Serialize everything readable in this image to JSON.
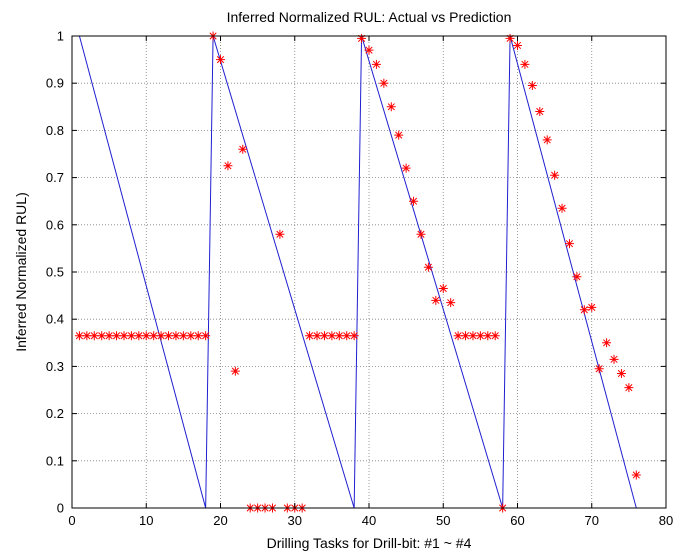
{
  "chart_data": {
    "type": "line",
    "title": "Inferred Normalized RUL: Actual vs Prediction",
    "xlabel": "Drilling Tasks for Drill-bit: #1 ~ #4",
    "ylabel": "Inferred Normalized RUL)",
    "xlim": [
      0,
      80
    ],
    "ylim": [
      0,
      1
    ],
    "xticks": [
      "0",
      "10",
      "20",
      "30",
      "40",
      "50",
      "60",
      "70",
      "80"
    ],
    "yticks": [
      "0",
      "0.1",
      "0.2",
      "0.3",
      "0.4",
      "0.5",
      "0.6",
      "0.7",
      "0.8",
      "0.9",
      "1"
    ],
    "grid": true,
    "legend": "none",
    "colors": {
      "actual": "#1f1fd0",
      "prediction": "#ff0000"
    },
    "series": [
      {
        "style": "line",
        "x": [
          1,
          18,
          19,
          38,
          39,
          58,
          59,
          76
        ],
        "y": [
          1,
          0,
          1,
          0,
          1,
          0,
          1,
          0
        ]
      },
      {
        "style": "marker-star",
        "x": [
          1,
          2,
          3,
          4,
          5,
          6,
          7,
          8,
          9,
          10,
          11,
          12,
          13,
          14,
          15,
          16,
          17,
          18,
          19,
          20,
          21,
          22,
          23,
          24,
          25,
          26,
          27,
          28,
          29,
          30,
          31,
          32,
          33,
          34,
          35,
          36,
          37,
          38,
          39,
          40,
          41,
          42,
          43,
          44,
          45,
          46,
          47,
          48,
          49,
          50,
          51,
          52,
          53,
          54,
          55,
          56,
          57,
          58,
          59,
          60,
          61,
          62,
          63,
          64,
          65,
          66,
          67,
          68,
          69,
          70,
          71,
          72,
          73,
          74,
          75,
          76
        ],
        "y": [
          0.365,
          0.365,
          0.365,
          0.365,
          0.365,
          0.365,
          0.365,
          0.365,
          0.365,
          0.365,
          0.365,
          0.365,
          0.365,
          0.365,
          0.365,
          0.365,
          0.365,
          0.365,
          1.0,
          0.95,
          0.725,
          0.29,
          0.76,
          0.0,
          0.0,
          0.0,
          0.0,
          0.58,
          0.0,
          0.0,
          0.0,
          0.365,
          0.365,
          0.365,
          0.365,
          0.365,
          0.365,
          0.365,
          0.995,
          0.97,
          0.94,
          0.9,
          0.85,
          0.79,
          0.72,
          0.65,
          0.58,
          0.51,
          0.44,
          0.465,
          0.435,
          0.365,
          0.365,
          0.365,
          0.365,
          0.365,
          0.365,
          0.0,
          0.995,
          0.98,
          0.94,
          0.895,
          0.84,
          0.78,
          0.705,
          0.635,
          0.56,
          0.49,
          0.42,
          0.425,
          0.295,
          0.35,
          0.315,
          0.285,
          0.255,
          0.07
        ]
      }
    ]
  }
}
